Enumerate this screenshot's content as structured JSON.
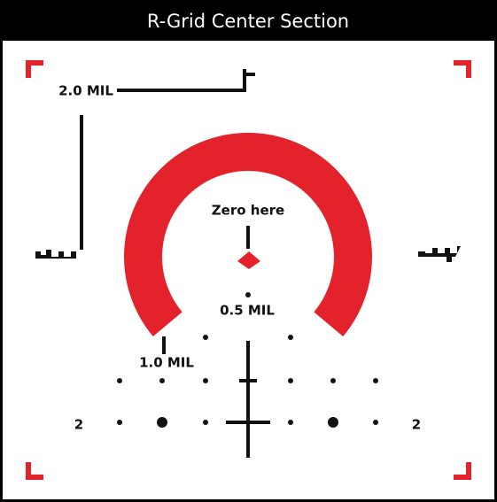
{
  "header": {
    "title": "R-Grid Center Section"
  },
  "labels": {
    "two_mil": "2.0 MIL",
    "zero": "Zero here",
    "half_mil": "0.5 MIL",
    "one_mil": "1.0 MIL",
    "left_number": "2",
    "right_number": "2"
  }
}
